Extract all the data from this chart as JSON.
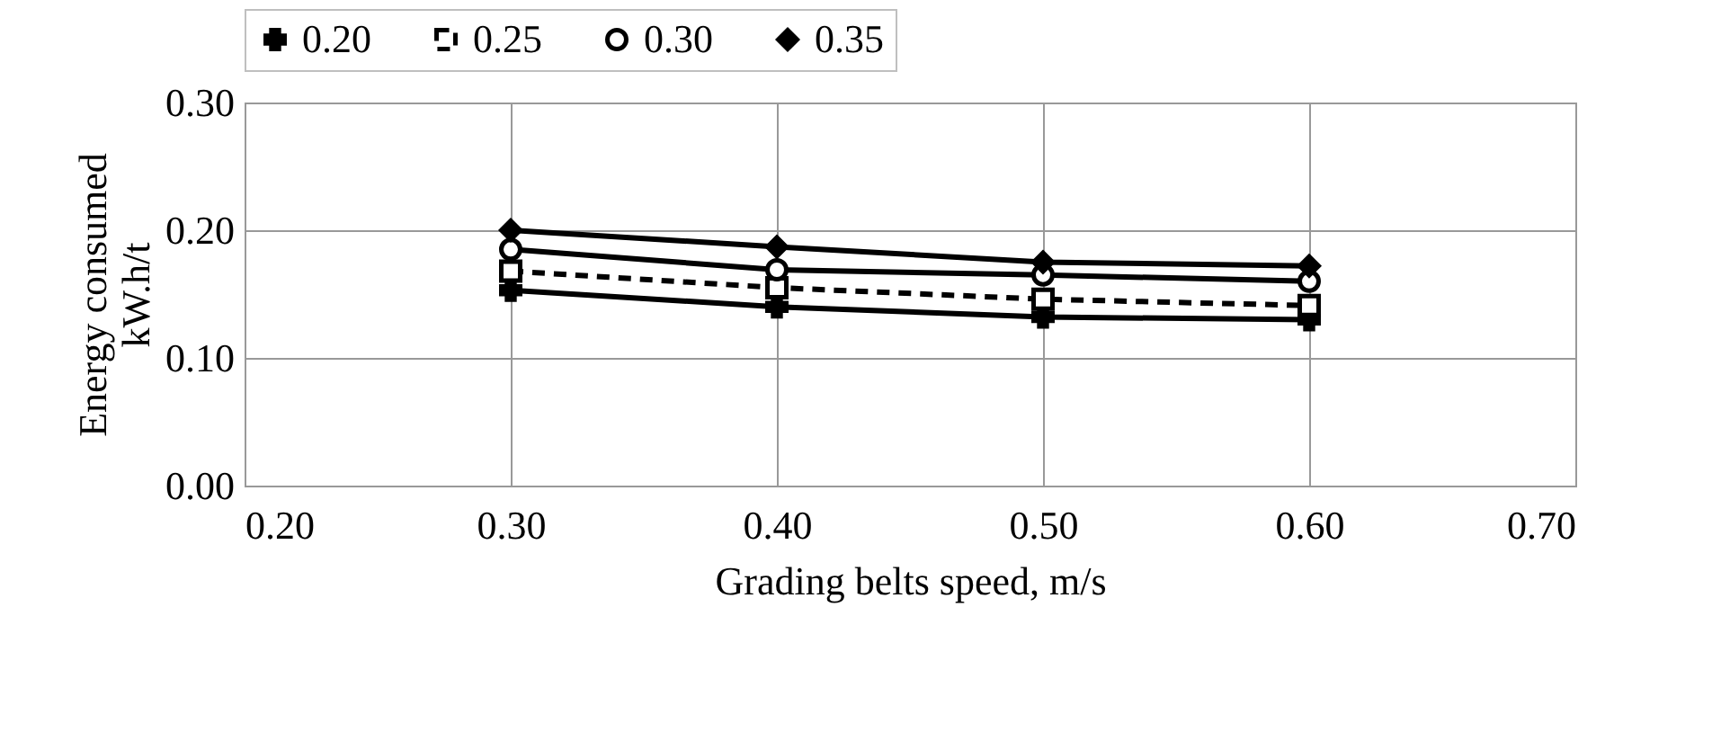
{
  "chart_data": {
    "type": "line",
    "xlabel": "Grading belts speed, m/s",
    "ylabel": [
      "Energy consumed",
      "kW.h/t"
    ],
    "x": [
      0.3,
      0.4,
      0.5,
      0.6
    ],
    "series": [
      {
        "name": "0.20",
        "color": "#000000",
        "marker": "cross",
        "line_style": "solid",
        "values": [
          0.153,
          0.14,
          0.132,
          0.13
        ]
      },
      {
        "name": "0.25",
        "color": "#000000",
        "marker": "square",
        "line_style": "dashed",
        "values": [
          0.168,
          0.155,
          0.146,
          0.141
        ]
      },
      {
        "name": "0.30",
        "color": "#000000",
        "marker": "circle",
        "line_style": "solid",
        "values": [
          0.185,
          0.169,
          0.165,
          0.16
        ]
      },
      {
        "name": "0.35",
        "color": "#000000",
        "marker": "diamond",
        "line_style": "solid",
        "values": [
          0.2,
          0.187,
          0.175,
          0.172
        ]
      }
    ],
    "xlim": [
      0.2,
      0.7
    ],
    "xticks": [
      {
        "value": 0.2,
        "label": "0.20"
      },
      {
        "value": 0.3,
        "label": "0.30"
      },
      {
        "value": 0.4,
        "label": "0.40"
      },
      {
        "value": 0.5,
        "label": "0.50"
      },
      {
        "value": 0.6,
        "label": "0.60"
      },
      {
        "value": 0.7,
        "label": "0.70"
      }
    ],
    "ylim": [
      0,
      0.3
    ],
    "yticks": [
      {
        "value": 0,
        "label": "0.00"
      },
      {
        "value": 0.1,
        "label": "0.10"
      },
      {
        "value": 0.2,
        "label": "0.20"
      },
      {
        "value": 0.3,
        "label": "0.30"
      }
    ],
    "grid": true,
    "legend": "top"
  }
}
